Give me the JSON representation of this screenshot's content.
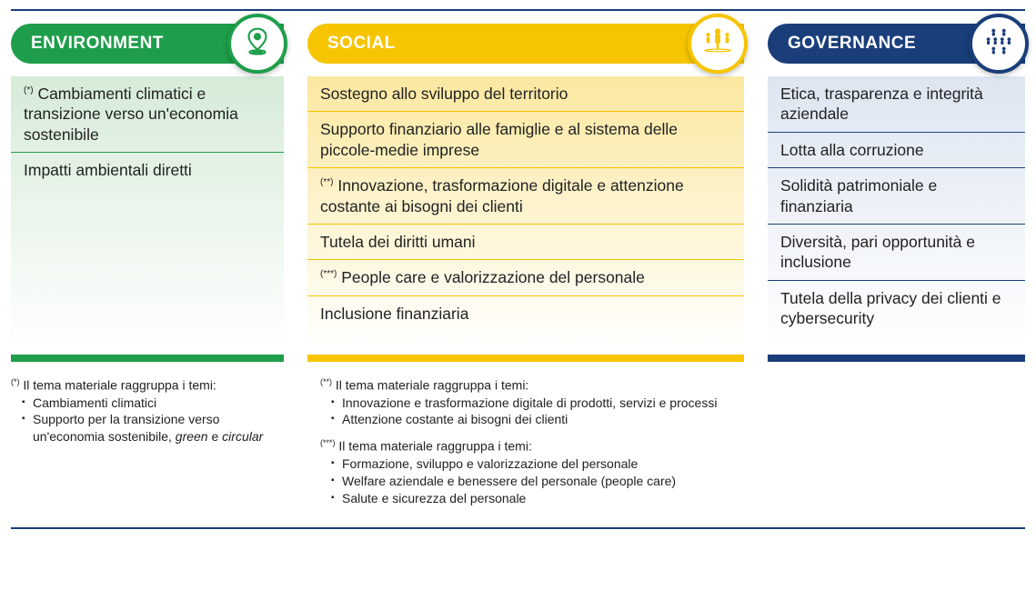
{
  "colors": {
    "rule": "#1a3e7a",
    "env": "#1e9e4a",
    "soc": "#f6c500",
    "gov": "#1a3e7a",
    "text": "#222222",
    "env_grad_top": "#d6ebd8",
    "soc_grad_top": "#fbe8a0",
    "gov_grad_top": "#dde5f1"
  },
  "typography": {
    "header_size_pt": 14,
    "item_size_pt": 13,
    "footnote_size_pt": 10.5
  },
  "env": {
    "title": "ENVIRONMENT",
    "icon": "map-pin-icon",
    "items": [
      {
        "sup": "(*)",
        "text": "Cambiamenti climatici e transizione verso un'economia sostenibile"
      },
      {
        "sup": "",
        "text": "Impatti ambientali diretti"
      }
    ]
  },
  "soc": {
    "title": "SOCIAL",
    "icon": "people-group-icon",
    "items": [
      {
        "sup": "",
        "text": "Sostegno allo sviluppo del territorio"
      },
      {
        "sup": "",
        "text": "Supporto finanziario alle famiglie e al sistema delle piccole-medie imprese"
      },
      {
        "sup": "(**)",
        "text": "Innovazione, trasformazione digitale e attenzione costante ai bisogni dei clienti"
      },
      {
        "sup": "",
        "text": "Tutela dei diritti umani"
      },
      {
        "sup": "(***)",
        "text": "People care e valorizzazione del personale"
      },
      {
        "sup": "",
        "text": "Inclusione finanziaria"
      }
    ]
  },
  "gov": {
    "title": "GOVERNANCE",
    "icon": "org-people-icon",
    "items": [
      {
        "sup": "",
        "text": "Etica, trasparenza e integrità aziendale"
      },
      {
        "sup": "",
        "text": "Lotta alla corruzione"
      },
      {
        "sup": "",
        "text": "Solidità patrimoniale e finanziaria"
      },
      {
        "sup": "",
        "text": "Diversità, pari opportunità e inclusione"
      },
      {
        "sup": "",
        "text": "Tutela della privacy dei clienti e cybersecurity"
      }
    ]
  },
  "footnotes": {
    "col1": [
      {
        "marker": "(*)",
        "lead": "Il tema materiale raggruppa i temi:",
        "bullets": [
          "Cambiamenti climatici",
          "Supporto per la transizione verso un'economia sostenibile, <em>green</em> e <em>circular</em>"
        ]
      }
    ],
    "col2": [
      {
        "marker": "(**)",
        "lead": "Il tema materiale raggruppa i temi:",
        "bullets": [
          "Innovazione e trasformazione digitale di prodotti, servizi e processi",
          "Attenzione costante ai bisogni dei clienti"
        ]
      },
      {
        "marker": "(***)",
        "lead": "Il tema materiale raggruppa i temi:",
        "bullets": [
          "Formazione, sviluppo e valorizzazione del personale",
          "Welfare aziendale e benessere del personale (people care)",
          "Salute e sicurezza del personale"
        ]
      }
    ]
  }
}
